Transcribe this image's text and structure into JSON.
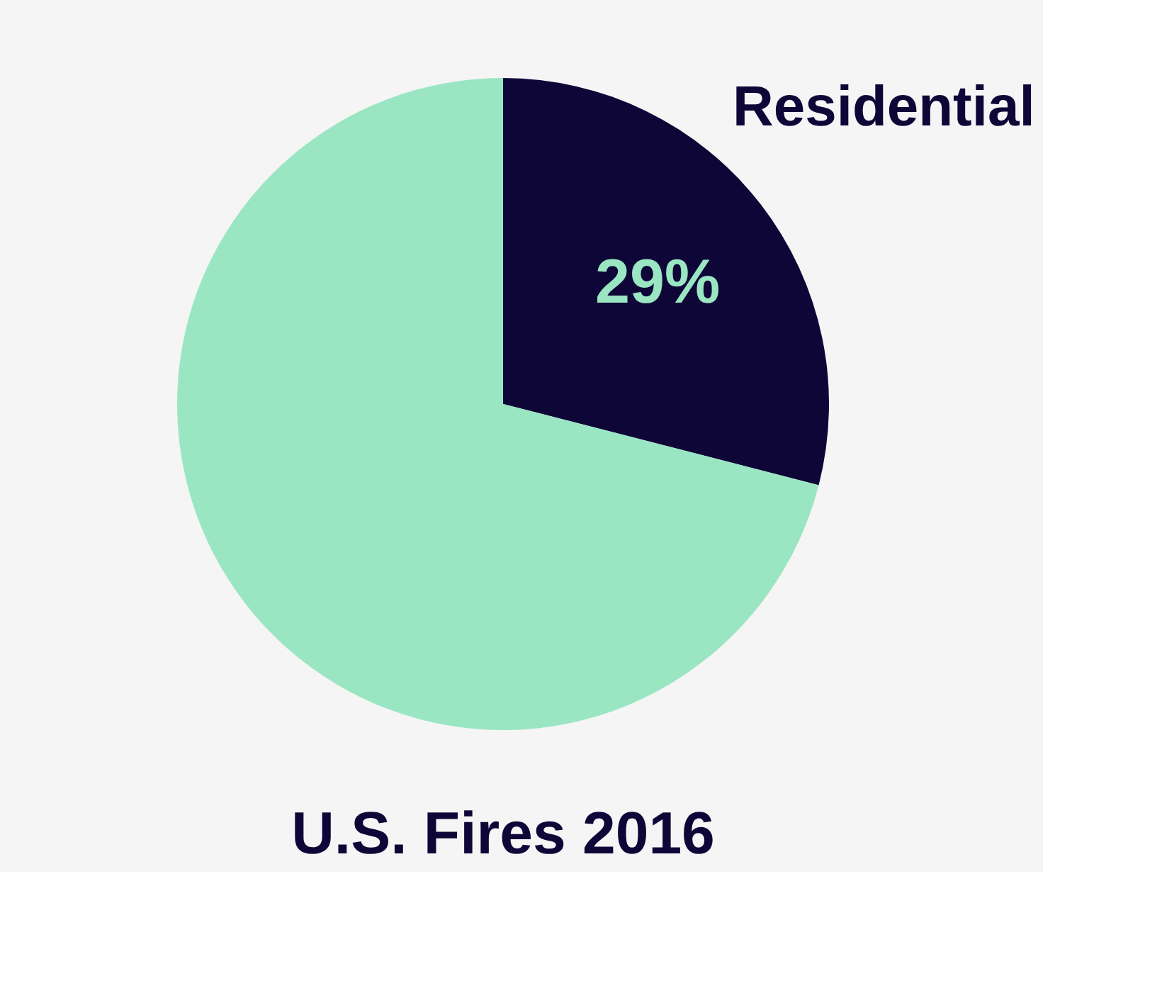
{
  "chart_data": {
    "type": "pie",
    "title": "U.S. Fires 2016",
    "categories": [
      "Residential",
      null
    ],
    "values": [
      29,
      71
    ],
    "colors": [
      "#0f0638",
      "#9ae6c3"
    ],
    "value_labels": [
      "29%",
      null
    ],
    "legend": false
  }
}
